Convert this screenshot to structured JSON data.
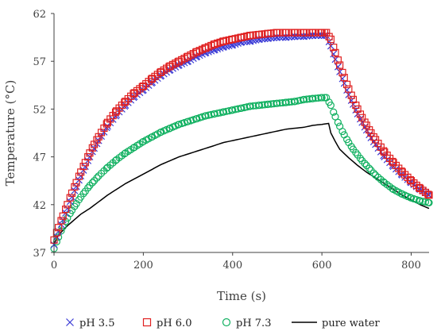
{
  "chart_data": {
    "type": "scatter",
    "title": "",
    "xlabel": "Time (s)",
    "ylabel": "Temperature (°C)",
    "xlim": [
      0,
      840
    ],
    "ylim": [
      37,
      62
    ],
    "xticks": [
      0,
      200,
      400,
      600,
      800
    ],
    "yticks": [
      37,
      42,
      47,
      52,
      57,
      62
    ],
    "grid": false,
    "legend_position": "bottom",
    "series": [
      {
        "name": "pH 3.5",
        "marker": "cross",
        "color": "#3b3bd6",
        "x": [
          0,
          10,
          20,
          30,
          40,
          50,
          60,
          70,
          80,
          90,
          100,
          120,
          140,
          160,
          180,
          200,
          220,
          240,
          260,
          280,
          300,
          320,
          340,
          360,
          380,
          400,
          420,
          440,
          460,
          480,
          500,
          520,
          540,
          560,
          580,
          600,
          610,
          620,
          630,
          640,
          650,
          660,
          670,
          680,
          690,
          700,
          710,
          720,
          740,
          760,
          780,
          800,
          820,
          840
        ],
        "y": [
          37.8,
          39.2,
          40.4,
          41.6,
          42.8,
          43.9,
          45.0,
          46.0,
          47.0,
          47.9,
          48.7,
          50.2,
          51.4,
          52.4,
          53.3,
          54.0,
          54.8,
          55.5,
          56.1,
          56.6,
          57.0,
          57.5,
          57.9,
          58.2,
          58.5,
          58.7,
          59.0,
          59.1,
          59.3,
          59.4,
          59.5,
          59.5,
          59.6,
          59.6,
          59.7,
          59.7,
          59.7,
          58.6,
          57.2,
          55.9,
          54.7,
          53.5,
          52.5,
          51.5,
          50.6,
          49.8,
          49.0,
          48.3,
          47.0,
          46.0,
          45.1,
          44.3,
          43.6,
          43.0
        ]
      },
      {
        "name": "pH 6.0",
        "marker": "square",
        "color": "#e02020",
        "x": [
          0,
          10,
          20,
          30,
          40,
          50,
          60,
          70,
          80,
          90,
          100,
          120,
          140,
          160,
          180,
          200,
          220,
          240,
          260,
          280,
          300,
          320,
          340,
          360,
          380,
          400,
          420,
          440,
          460,
          480,
          500,
          520,
          540,
          560,
          580,
          600,
          610,
          620,
          630,
          640,
          650,
          660,
          670,
          680,
          690,
          700,
          710,
          720,
          740,
          760,
          780,
          800,
          820,
          840
        ],
        "y": [
          38.3,
          39.6,
          40.8,
          42.0,
          43.2,
          44.3,
          45.4,
          46.4,
          47.4,
          48.3,
          49.1,
          50.6,
          51.8,
          52.8,
          53.7,
          54.4,
          55.2,
          55.9,
          56.5,
          57.0,
          57.5,
          58.0,
          58.4,
          58.8,
          59.1,
          59.3,
          59.5,
          59.7,
          59.8,
          59.9,
          60.0,
          60.0,
          60.0,
          60.0,
          60.0,
          60.0,
          60.0,
          59.3,
          57.9,
          56.6,
          55.3,
          54.1,
          53.0,
          52.0,
          51.1,
          50.3,
          49.5,
          48.8,
          47.5,
          46.4,
          45.4,
          44.5,
          43.7,
          43.0
        ]
      },
      {
        "name": "pH 7.3",
        "marker": "circle",
        "color": "#10b060",
        "x": [
          0,
          10,
          20,
          30,
          40,
          50,
          60,
          70,
          80,
          90,
          100,
          120,
          140,
          160,
          180,
          200,
          220,
          240,
          260,
          280,
          300,
          320,
          340,
          360,
          380,
          400,
          420,
          440,
          460,
          480,
          500,
          520,
          540,
          560,
          580,
          600,
          610,
          620,
          630,
          640,
          650,
          660,
          670,
          680,
          690,
          700,
          710,
          720,
          740,
          760,
          780,
          800,
          820,
          840
        ],
        "y": [
          37.4,
          38.6,
          39.7,
          40.6,
          41.4,
          42.1,
          42.8,
          43.4,
          44.0,
          44.5,
          45.0,
          45.9,
          46.7,
          47.4,
          48.0,
          48.6,
          49.1,
          49.6,
          50.0,
          50.4,
          50.7,
          51.0,
          51.3,
          51.5,
          51.7,
          51.9,
          52.1,
          52.3,
          52.4,
          52.5,
          52.6,
          52.7,
          52.8,
          53.0,
          53.1,
          53.2,
          53.2,
          52.4,
          51.2,
          50.2,
          49.3,
          48.5,
          47.8,
          47.2,
          46.6,
          46.1,
          45.6,
          45.1,
          44.3,
          43.6,
          43.1,
          42.7,
          42.4,
          42.2
        ]
      },
      {
        "name": "pure water",
        "marker": "line",
        "color": "#000000",
        "x": [
          0,
          10,
          20,
          30,
          40,
          50,
          60,
          80,
          100,
          120,
          140,
          160,
          180,
          200,
          220,
          240,
          260,
          280,
          300,
          320,
          340,
          360,
          380,
          400,
          420,
          440,
          460,
          480,
          500,
          520,
          540,
          560,
          580,
          600,
          615,
          620,
          630,
          640,
          660,
          680,
          700,
          720,
          740,
          760,
          780,
          800,
          820,
          840
        ],
        "y": [
          37.9,
          38.8,
          39.3,
          39.8,
          40.2,
          40.6,
          41.0,
          41.6,
          42.3,
          43.0,
          43.6,
          44.2,
          44.7,
          45.2,
          45.7,
          46.2,
          46.6,
          47.0,
          47.3,
          47.6,
          47.9,
          48.2,
          48.5,
          48.7,
          48.9,
          49.1,
          49.3,
          49.5,
          49.7,
          49.9,
          50.0,
          50.1,
          50.3,
          50.4,
          50.5,
          49.5,
          48.6,
          47.8,
          46.9,
          46.1,
          45.4,
          44.8,
          44.2,
          43.6,
          43.0,
          42.5,
          42.0,
          41.6
        ]
      }
    ]
  }
}
